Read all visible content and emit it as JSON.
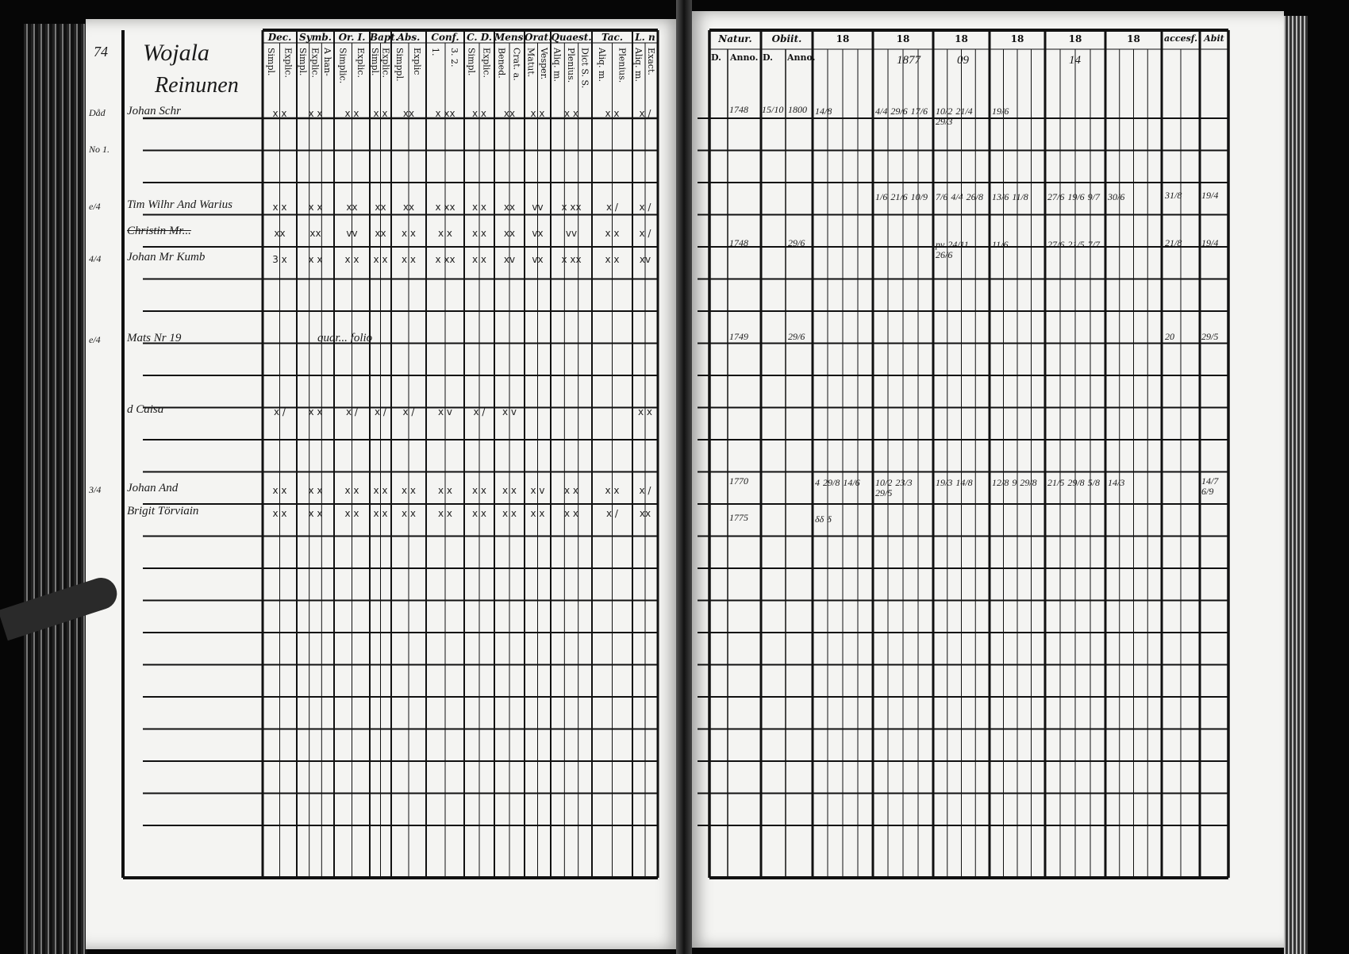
{
  "left_page": {
    "page_number": "74",
    "village": "Wojala",
    "farm": "Reinunen",
    "column_groups": [
      {
        "label": "Dec.",
        "sub": [
          "Simpl.",
          "Explic."
        ]
      },
      {
        "label": "Symb.",
        "sub": [
          "Simpl.",
          "Explic.",
          "A han-"
        ]
      },
      {
        "label": "Or. I.",
        "sub": [
          "Simplic.",
          "Explic."
        ]
      },
      {
        "label": "Bapt.",
        "sub": [
          "Simpl.",
          "Explic."
        ]
      },
      {
        "label": "Abs.",
        "sub": [
          "Simppl.",
          "Explic"
        ]
      },
      {
        "label": "Conf.",
        "sub": [
          "1.",
          "3. 2."
        ]
      },
      {
        "label": "C. D.",
        "sub": [
          "Simpl.",
          "Explic."
        ]
      },
      {
        "label": "Mens.",
        "sub": [
          "Bened.",
          "Crat. a."
        ]
      },
      {
        "label": "Orat.",
        "sub": [
          "Matut.",
          "Vesper."
        ]
      },
      {
        "label": "Quaest.",
        "sub": [
          "Aliq. m.",
          "Plenius.",
          "Dict S. S."
        ]
      },
      {
        "label": "Tac.",
        "sub": [
          "Aliq. m.",
          "Plenius."
        ]
      },
      {
        "label": "L. n",
        "sub": [
          "Aliq. m.",
          "Exact."
        ]
      }
    ],
    "rows": [
      {
        "margin": "Dåd",
        "name": "Johan Schr",
        "struck": false,
        "marks": [
          "x x",
          "x x",
          "x x",
          "x x",
          "xx",
          "x xx",
          "x x",
          "xx",
          "x x",
          "x x",
          "x x",
          "x /"
        ]
      },
      {
        "margin": "No 1.",
        "name": "",
        "struck": false,
        "marks": []
      },
      {
        "margin": "e/4",
        "name": "Tim Wilhr And Warius",
        "struck": false,
        "marks": [
          "x x",
          "x x",
          "xx",
          "xx",
          "xx",
          "x xx",
          "x x",
          "xx",
          "vv",
          "x xx",
          "x /",
          "x /"
        ]
      },
      {
        "margin": "",
        "name": "Christin Mr...",
        "struck": true,
        "marks": [
          "xx",
          "xx",
          "vv",
          "xx",
          "x x",
          "x x",
          "x x",
          "xx",
          "vx",
          "vv",
          "x x",
          "x /"
        ]
      },
      {
        "margin": "4/4",
        "name": "Johan Mr Kumb",
        "struck": false,
        "marks": [
          "3 x",
          "x x",
          "x x",
          "x x",
          "x x",
          "x xx",
          "x x",
          "xv",
          "vx",
          "x xx",
          "x x",
          "xv"
        ]
      },
      {
        "margin": "e/4",
        "name": "Mats Nr 19",
        "struck": false,
        "note": "quar... folio",
        "marks": []
      },
      {
        "margin": "",
        "name": "d Caisa",
        "struck": false,
        "marks": [
          "x /",
          "x x",
          "x /",
          "x /",
          "x /",
          "x v",
          "x /",
          "x v",
          "",
          "",
          "",
          "x x"
        ]
      },
      {
        "margin": "3/4",
        "name": "Johan And",
        "struck": false,
        "marks": [
          "x x",
          "x x",
          "x x",
          "x x",
          "x x",
          "x x",
          "x x",
          "x x",
          "x v",
          "x x",
          "x x",
          "x /"
        ]
      },
      {
        "margin": "",
        "name": "Brigit Törviain",
        "struck": false,
        "marks": [
          "x x",
          "x x",
          "x x",
          "x x",
          "x x",
          "x x",
          "x x",
          "x x",
          "x x",
          "x x",
          "x /",
          "xx"
        ]
      }
    ]
  },
  "right_page": {
    "headers": {
      "natur": "Natur.",
      "obiit": "Obiit.",
      "day": "D.",
      "anno": "Anno.",
      "years": [
        "18",
        "18",
        "18",
        "18",
        "18",
        "18"
      ],
      "accesf": "accesf.",
      "abit": "Abit"
    },
    "year_suffixes": [
      "",
      "1877",
      "09",
      "",
      "14",
      ""
    ],
    "rows": [
      {
        "row": 0,
        "natur_anno": "1748",
        "obiit_d": "15/10",
        "obiit_anno": "1800",
        "years": [
          "14/8",
          "4/4 29/6 17/6",
          "10/2 21/4 29/3",
          "19/6",
          "",
          ""
        ],
        "accesf": "",
        "abit": ""
      },
      {
        "row": 2,
        "natur_anno": "",
        "obiit_d": "",
        "obiit_anno": "",
        "years": [
          "",
          "1/6 21/6 10/9",
          "7/6 4/4 26/8",
          "13/6 11/8",
          "27/6 19/6 9/7",
          "30/6"
        ],
        "accesf": "31/8",
        "abit": "19/4"
      },
      {
        "row": 4,
        "natur_anno": "1748",
        "obiit_d": "",
        "obiit_anno": "29/6",
        "years": [
          "",
          "",
          "pv 24/11 26/6",
          "11/6",
          "27/6 21/5 7/7",
          ""
        ],
        "accesf": "21/8",
        "abit": "19/4"
      },
      {
        "row": 7,
        "natur_anno": "1749",
        "obiit_d": "",
        "obiit_anno": "29/6",
        "years": [
          "",
          "",
          "",
          "",
          "",
          ""
        ],
        "accesf": "20",
        "abit": "29/5"
      },
      {
        "row": 11,
        "natur_anno": "1770",
        "obiit_d": "",
        "obiit_anno": "",
        "years": [
          "4 29/8 14/6",
          "10/2 23/3 29/5",
          "19/3 14/8",
          "12/8 9 29/8",
          "21/5 29/8 5/8",
          "14/3"
        ],
        "accesf": "",
        "abit": "14/7 6/9"
      },
      {
        "row": 12,
        "natur_anno": "1775",
        "obiit_d": "",
        "obiit_anno": "",
        "years": [
          "δδ δ",
          "",
          "",
          "",
          "",
          ""
        ],
        "accesf": "",
        "abit": ""
      }
    ]
  },
  "colors": {
    "paper": "#f4f4f2",
    "ink": "#111111",
    "background": "#060606"
  }
}
